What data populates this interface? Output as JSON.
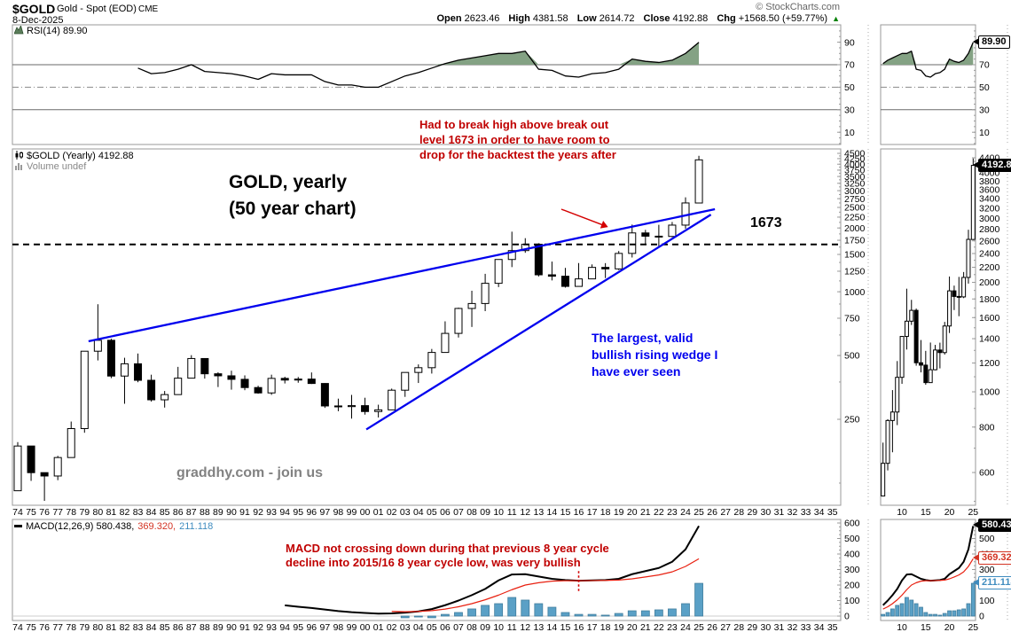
{
  "header": {
    "symbol": "$GOLD",
    "name": "Gold - Spot (EOD)",
    "exchange": "CME",
    "date": "8-Dec-2025",
    "copyright": "© StockCharts.com",
    "quote": {
      "open_label": "Open",
      "open": "2623.46",
      "high_label": "High",
      "high": "4381.58",
      "low_label": "Low",
      "low": "2614.72",
      "close_label": "Close",
      "close": "4192.88",
      "chg_label": "Chg",
      "chg": "+1568.50 (+59.77%)",
      "up_icon": "▲"
    }
  },
  "panels": {
    "rsi": {
      "label": "RSI(14) 89.90"
    },
    "main": {
      "label": "$GOLD (Yearly) 4192.88",
      "volume_label": "Volume undef"
    },
    "macd": {
      "label_black": "MACD(12,26,9) 580.438,",
      "label_signal": "369.320,",
      "label_hist": "211.118"
    }
  },
  "annotations": {
    "main_title": [
      "GOLD, yearly",
      "(50 year chart)"
    ],
    "red_note": [
      "Had to break high above break out",
      "level 1673 in order to have room to",
      "drop for the backtest the years after"
    ],
    "blue_note": [
      "The largest, valid",
      "bullish rising wedge I",
      "have ever seen"
    ],
    "level_label": "1673",
    "watermark": "graddhy.com - join us",
    "macd_note": [
      "MACD not crossing down during that previous 8 year cycle",
      "decline into 2015/16 8 year cycle low, was very bullish"
    ]
  },
  "callouts": {
    "rsi": "89.90",
    "price": "4192.88",
    "macd": "580.438",
    "signal": "369.320",
    "hist": "211.118"
  },
  "colors": {
    "frame": "#9a9a9a",
    "guide": "#6a6a6a",
    "mid_guide": "#8a8a8a",
    "rsi_fill": "#84a284",
    "rsi_line": "#000000",
    "candle_up": "#ffffff",
    "candle_down": "#000000",
    "candle_stroke": "#000000",
    "trendline": "#0000ee",
    "level_line": "#000000",
    "arrow_red": "#d40000",
    "vline_red": "#d40000",
    "macd_line": "#000000",
    "macd_signal": "#e82010",
    "hist_fill": "#5aa0c6",
    "hist_stroke": "#417e9e",
    "zero_line": "#cccccc",
    "up_triangle": "#008000"
  },
  "chart_data": {
    "type": "candlestick-with-indicators",
    "x_years": {
      "start": 1974,
      "end": 2035,
      "data_end": 2025
    },
    "zoom_window": {
      "start": 2006,
      "end": 2025,
      "x_ticks": [
        2010,
        2015,
        2020,
        2025
      ]
    },
    "price": {
      "type": "candlestick",
      "scale": "log",
      "start": 1974,
      "last": 4192.88,
      "y_ticks_main": [
        4500,
        4250,
        4000,
        3750,
        3500,
        3250,
        3000,
        2750,
        2500,
        2250,
        2000,
        1750,
        1500,
        1250,
        1000,
        750,
        500,
        250
      ],
      "y_ticks_zoom": [
        4400,
        4000,
        3800,
        3600,
        3400,
        3200,
        3000,
        2800,
        2600,
        2400,
        2200,
        2000,
        1800,
        1600,
        1400,
        1200,
        1000,
        800,
        600
      ],
      "ohlc": [
        [
          115,
          195,
          115,
          187
        ],
        [
          187,
          187,
          128,
          140
        ],
        [
          140,
          140,
          103,
          135
        ],
        [
          135,
          168,
          129,
          165
        ],
        [
          165,
          244,
          165,
          226
        ],
        [
          226,
          524,
          216,
          524
        ],
        [
          524,
          873,
          474,
          590
        ],
        [
          590,
          600,
          391,
          400
        ],
        [
          400,
          488,
          296,
          457
        ],
        [
          457,
          511,
          374,
          382
        ],
        [
          382,
          406,
          303,
          309
        ],
        [
          309,
          340,
          284,
          327
        ],
        [
          327,
          442,
          326,
          391
        ],
        [
          391,
          502,
          390,
          484
        ],
        [
          484,
          485,
          389,
          410
        ],
        [
          410,
          417,
          355,
          401
        ],
        [
          401,
          424,
          345,
          386
        ],
        [
          386,
          403,
          343,
          353
        ],
        [
          353,
          360,
          330,
          333
        ],
        [
          333,
          406,
          326,
          390
        ],
        [
          390,
          397,
          369,
          383
        ],
        [
          383,
          396,
          372,
          387
        ],
        [
          387,
          416,
          367,
          369
        ],
        [
          369,
          370,
          283,
          289
        ],
        [
          289,
          313,
          273,
          287
        ],
        [
          287,
          326,
          252,
          290
        ],
        [
          290,
          316,
          263,
          272
        ],
        [
          272,
          293,
          255,
          277
        ],
        [
          277,
          349,
          277,
          343
        ],
        [
          343,
          416,
          319,
          416
        ],
        [
          416,
          454,
          371,
          438
        ],
        [
          438,
          537,
          411,
          517
        ],
        [
          517,
          725,
          517,
          636
        ],
        [
          636,
          841,
          608,
          834
        ],
        [
          834,
          1011,
          682,
          880
        ],
        [
          880,
          1215,
          810,
          1096
        ],
        [
          1096,
          1421,
          1052,
          1420
        ],
        [
          1420,
          1921,
          1307,
          1564
        ],
        [
          1564,
          1790,
          1527,
          1675
        ],
        [
          1675,
          1694,
          1180,
          1202
        ],
        [
          1202,
          1388,
          1131,
          1184
        ],
        [
          1184,
          1296,
          1046,
          1060
        ],
        [
          1060,
          1366,
          1061,
          1150
        ],
        [
          1150,
          1346,
          1146,
          1303
        ],
        [
          1303,
          1365,
          1160,
          1282
        ],
        [
          1282,
          1557,
          1266,
          1517
        ],
        [
          1517,
          2075,
          1451,
          1895
        ],
        [
          1895,
          1959,
          1678,
          1829
        ],
        [
          1829,
          2070,
          1614,
          1824
        ],
        [
          1824,
          2135,
          1810,
          2063
        ],
        [
          2063,
          2790,
          1984,
          2625
        ],
        [
          2623.46,
          4381.58,
          2614.72,
          4192.88
        ]
      ]
    },
    "rsi": {
      "type": "line",
      "start": 1983,
      "last": 89.9,
      "ylim": [
        0,
        100
      ],
      "y_ticks": [
        90,
        70,
        50,
        30,
        10
      ],
      "y_ticks_zoom": [
        70,
        50,
        30,
        10
      ],
      "bands": {
        "overbought": 70,
        "mid": 50,
        "oversold": 30
      },
      "values": [
        67,
        62,
        63,
        66,
        70,
        64,
        63,
        62,
        60,
        57,
        62,
        61,
        61,
        61,
        55,
        52,
        52,
        50,
        50,
        55,
        60,
        63,
        67,
        71,
        74,
        76,
        78,
        80,
        80,
        82,
        66,
        65,
        60,
        59,
        62,
        63,
        66,
        75,
        73,
        72,
        74,
        80,
        89.9
      ]
    },
    "macd": {
      "type": "macd",
      "y_ticks": [
        600,
        500,
        400,
        300,
        200,
        100,
        0
      ],
      "y_ticks_zoom": [
        500,
        400,
        300,
        200,
        100,
        0
      ],
      "last": {
        "macd": 580.438,
        "signal": 369.32,
        "hist": 211.118
      },
      "line": {
        "start": 1994,
        "values": [
          69,
          60,
          52,
          42,
          32,
          25,
          20,
          16,
          17,
          22,
          30,
          45,
          70,
          100,
          135,
          175,
          230,
          268,
          270,
          255,
          240,
          232,
          228,
          230,
          232,
          240,
          270,
          290,
          310,
          350,
          430,
          580.438
        ]
      },
      "signal": {
        "start": 2002,
        "values": [
          30,
          28,
          30,
          35,
          45,
          60,
          80,
          105,
          135,
          170,
          200,
          215,
          225,
          228,
          228,
          229,
          230,
          232,
          240,
          252,
          265,
          285,
          320,
          369.32
        ]
      },
      "hist": {
        "start": 2003,
        "values": [
          -11,
          -6,
          -11,
          11,
          23,
          46,
          69,
          80,
          120,
          103,
          80,
          57,
          23,
          11,
          11,
          6,
          17,
          34,
          34,
          40,
          46,
          80,
          211.118
        ]
      }
    },
    "overlays": {
      "breakout_level": 1673,
      "wedge_upper": {
        "x1": 1979.3,
        "p1": 584,
        "x2": 2026.2,
        "p2": 2452
      },
      "wedge_lower": {
        "x1": 2000.1,
        "p1": 224,
        "x2": 2025.9,
        "p2": 2312
      },
      "arrow": {
        "x1": 2014.7,
        "p1": 2452,
        "x2": 2018.2,
        "p2": 2021
      },
      "macd_vline": {
        "year": 2016,
        "v1": 290,
        "v2": 150
      }
    }
  }
}
